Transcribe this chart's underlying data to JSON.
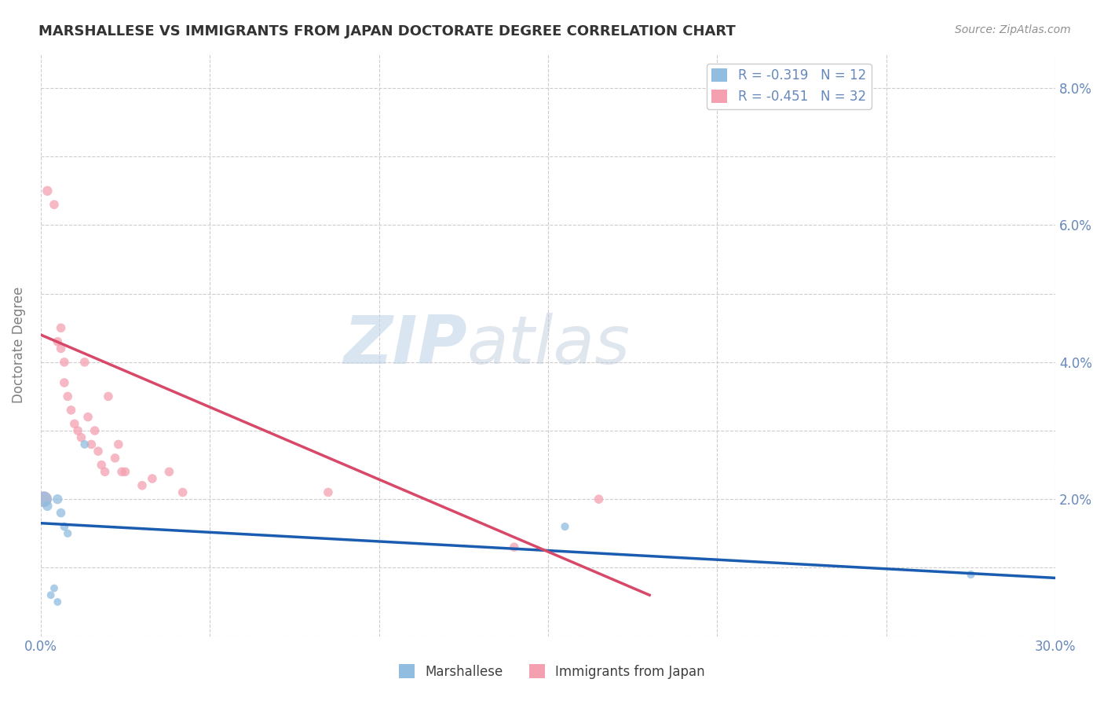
{
  "title": "MARSHALLESE VS IMMIGRANTS FROM JAPAN DOCTORATE DEGREE CORRELATION CHART",
  "source": "Source: ZipAtlas.com",
  "ylabel": "Doctorate Degree",
  "xlim": [
    0.0,
    0.3
  ],
  "ylim": [
    0.0,
    0.085
  ],
  "x_ticks": [
    0.0,
    0.05,
    0.1,
    0.15,
    0.2,
    0.25,
    0.3
  ],
  "x_tick_labels": [
    "0.0%",
    "",
    "",
    "",
    "",
    "",
    "30.0%"
  ],
  "y_ticks_right": [
    0.0,
    0.02,
    0.04,
    0.06,
    0.08
  ],
  "y_tick_labels_right": [
    "",
    "2.0%",
    "4.0%",
    "6.0%",
    "8.0%"
  ],
  "watermark_zip": "ZIP",
  "watermark_atlas": "atlas",
  "legend_entries": [
    {
      "label": "R = -0.319   N = 12",
      "color": "#aec6e8"
    },
    {
      "label": "R = -0.451   N = 32",
      "color": "#f4b8c1"
    }
  ],
  "marshallese_x": [
    0.001,
    0.002,
    0.003,
    0.004,
    0.005,
    0.005,
    0.006,
    0.007,
    0.008,
    0.013,
    0.155,
    0.275
  ],
  "marshallese_y": [
    0.02,
    0.019,
    0.006,
    0.007,
    0.005,
    0.02,
    0.018,
    0.016,
    0.015,
    0.028,
    0.016,
    0.009
  ],
  "marshallese_sizes": [
    200,
    80,
    50,
    50,
    50,
    80,
    70,
    60,
    55,
    60,
    55,
    55
  ],
  "japan_x": [
    0.001,
    0.002,
    0.004,
    0.005,
    0.006,
    0.006,
    0.007,
    0.007,
    0.008,
    0.009,
    0.01,
    0.011,
    0.012,
    0.013,
    0.014,
    0.015,
    0.016,
    0.017,
    0.018,
    0.019,
    0.02,
    0.022,
    0.023,
    0.024,
    0.025,
    0.03,
    0.033,
    0.038,
    0.042,
    0.085,
    0.14,
    0.165
  ],
  "japan_y": [
    0.02,
    0.065,
    0.063,
    0.043,
    0.045,
    0.042,
    0.04,
    0.037,
    0.035,
    0.033,
    0.031,
    0.03,
    0.029,
    0.04,
    0.032,
    0.028,
    0.03,
    0.027,
    0.025,
    0.024,
    0.035,
    0.026,
    0.028,
    0.024,
    0.024,
    0.022,
    0.023,
    0.024,
    0.021,
    0.021,
    0.013,
    0.02
  ],
  "japan_sizes": [
    200,
    80,
    70,
    70,
    70,
    70,
    70,
    70,
    70,
    70,
    70,
    70,
    70,
    70,
    70,
    70,
    70,
    70,
    70,
    70,
    70,
    70,
    70,
    70,
    70,
    70,
    70,
    70,
    70,
    70,
    70,
    70
  ],
  "blue_line_x": [
    0.0,
    0.3
  ],
  "blue_line_y": [
    0.0165,
    0.0085
  ],
  "pink_line_x": [
    0.0,
    0.18
  ],
  "pink_line_y": [
    0.044,
    0.006
  ],
  "marshallese_color": "#90bde0",
  "japan_color": "#f4a0b0",
  "blue_line_color": "#1a5cb0",
  "pink_line_color": "#d84868",
  "bg_color": "#ffffff",
  "grid_color": "#c8c8c8",
  "title_color": "#333333",
  "axis_label_color": "#6688bb",
  "source_color": "#909090"
}
